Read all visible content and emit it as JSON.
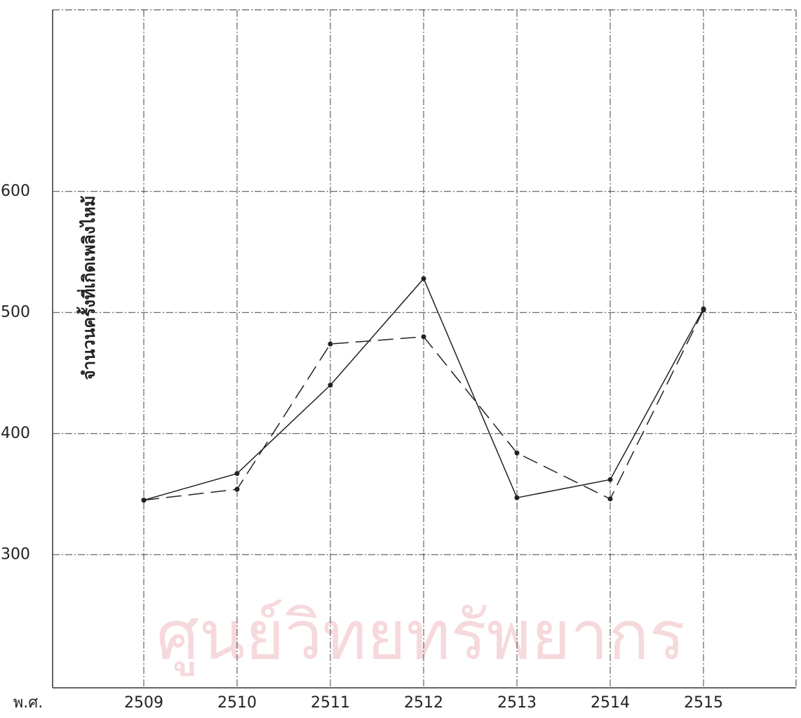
{
  "chart_data": {
    "type": "line",
    "watermark": "ศูนย์วิทยทรัพยากร",
    "y_axis_label": "จำนวนครั้งที่เกิดเพลิงไหม้",
    "x_axis_label": "พ.ศ.",
    "categories": [
      "2509",
      "2510",
      "2511",
      "2512",
      "2513",
      "2514",
      "2515"
    ],
    "series": [
      {
        "color": "#222222",
        "style": "solid",
        "values": [
          345,
          367,
          440,
          528,
          347,
          362,
          503
        ]
      },
      {
        "color": "#222222",
        "style": "dashed",
        "values": [
          345,
          354,
          474,
          480,
          384,
          346,
          502
        ]
      }
    ],
    "ylim": [
      190,
      750
    ],
    "yticks": [
      300,
      400,
      500,
      600
    ],
    "grid": true
  }
}
